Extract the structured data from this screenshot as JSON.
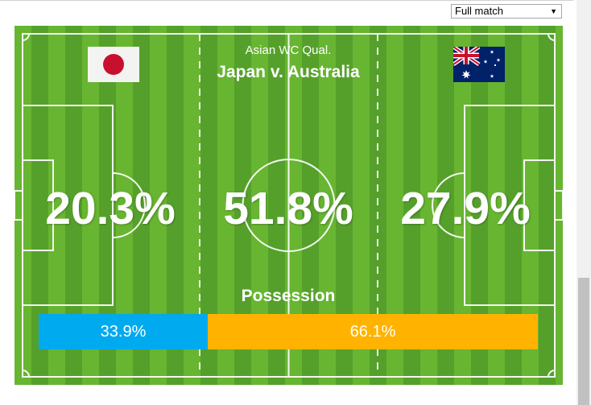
{
  "period_select": {
    "selected": "Full match"
  },
  "header": {
    "competition": "Asian WC Qual.",
    "match": "Japan v. Australia"
  },
  "teams": {
    "home": {
      "flag_icon": "japan-flag-icon"
    },
    "away": {
      "flag_icon": "australia-flag-icon"
    }
  },
  "territory": {
    "home": "20.3%",
    "draw": "51.8%",
    "away": "27.9%"
  },
  "possession": {
    "title": "Possession",
    "home": {
      "label": "33.9%",
      "value": 33.9,
      "color": "#00aaee"
    },
    "away": {
      "label": "66.1%",
      "value": 66.1,
      "color": "#ffb300"
    }
  }
}
